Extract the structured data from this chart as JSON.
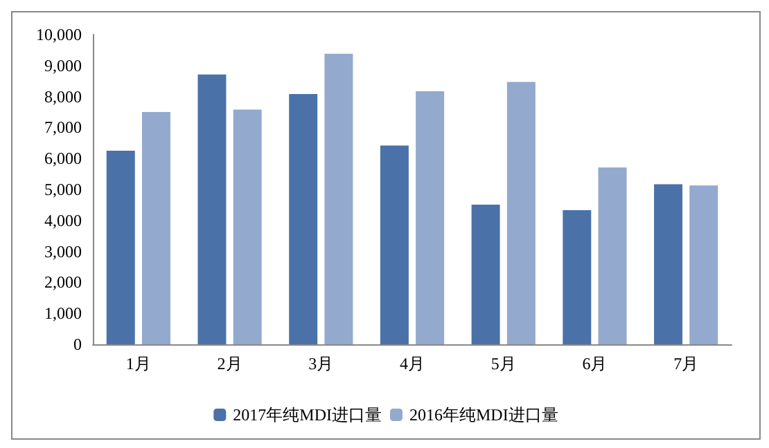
{
  "chart_data": {
    "type": "bar",
    "categories": [
      "1月",
      "2月",
      "3月",
      "4月",
      "5月",
      "6月",
      "7月"
    ],
    "series": [
      {
        "name": "2017年纯MDI进口量",
        "color": "#4a72a8",
        "values": [
          6250,
          8710,
          8080,
          6420,
          4510,
          4330,
          5170
        ]
      },
      {
        "name": "2016年纯MDI进口量",
        "color": "#93a9cd",
        "values": [
          7500,
          7580,
          9380,
          8170,
          8470,
          5710,
          5130
        ]
      }
    ],
    "ylim": [
      0,
      10000
    ],
    "yticks": [
      0,
      {
        "value": 1000,
        "label": "1,000"
      },
      {
        "value": 2000,
        "label": "2,000"
      },
      {
        "value": 3000,
        "label": "3,000"
      },
      {
        "value": 4000,
        "label": "4,000"
      },
      {
        "value": 5000,
        "label": "5,000"
      },
      {
        "value": 6000,
        "label": "6,000"
      },
      {
        "value": 7000,
        "label": "7,000"
      },
      {
        "value": 8000,
        "label": "8,000"
      },
      {
        "value": 9000,
        "label": "9,000"
      },
      {
        "value": 10000,
        "label": "10,000"
      }
    ],
    "grid": false,
    "legend": "bottom"
  }
}
